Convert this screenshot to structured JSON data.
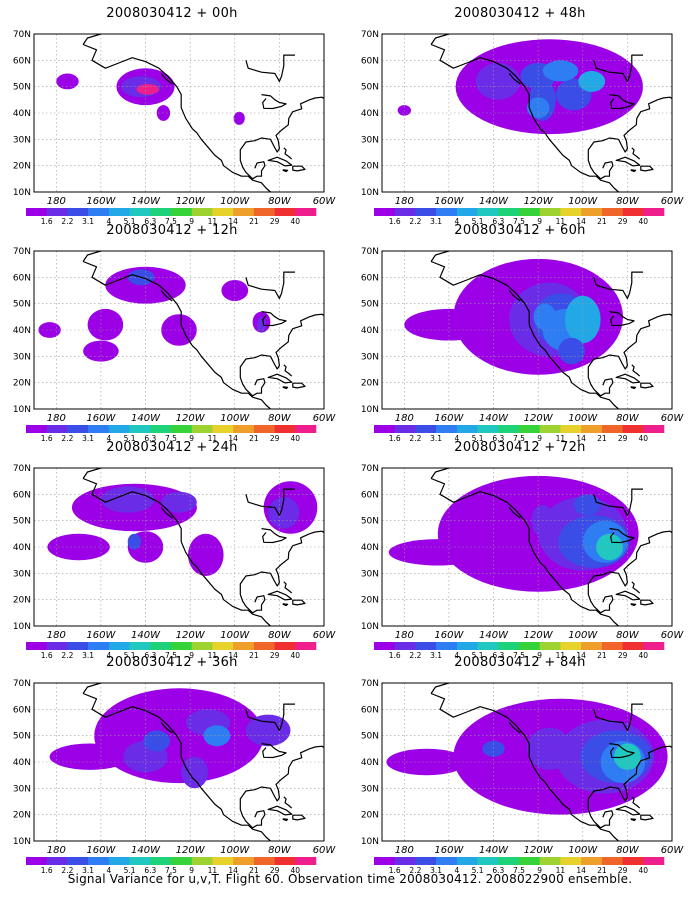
{
  "panels": [
    {
      "title": "2008030412 + 00h"
    },
    {
      "title": "2008030412 + 48h"
    },
    {
      "title": "2008030412 + 12h"
    },
    {
      "title": "2008030412 + 60h"
    },
    {
      "title": "2008030412 + 24h"
    },
    {
      "title": "2008030412 + 72h"
    },
    {
      "title": "2008030412 + 36h"
    },
    {
      "title": "2008030412 + 84h"
    }
  ],
  "lat_labels": [
    "70N",
    "60N",
    "50N",
    "40N",
    "30N",
    "20N",
    "10N"
  ],
  "lon_labels": [
    "180",
    "160W",
    "140W",
    "120W",
    "100W",
    "80W",
    "60W"
  ],
  "colorbar": {
    "labels": [
      "1.6",
      "2.2",
      "3.1",
      "4",
      "5.1",
      "6.3",
      "7.5",
      "9",
      "11",
      "14",
      "21",
      "29",
      "40"
    ],
    "colors": [
      "#9b00e6",
      "#6a2ce6",
      "#3a4de6",
      "#2f7df2",
      "#22a8e6",
      "#20c8c0",
      "#1ed27a",
      "#35d23a",
      "#9ed230",
      "#e6d22a",
      "#ee9f2a",
      "#f0662a",
      "#f03030",
      "#ee1e8c"
    ]
  },
  "caption": "Signal Variance for u,v,T. Flight 60. Observation time 2008030412. 2008022900 ensemble."
}
